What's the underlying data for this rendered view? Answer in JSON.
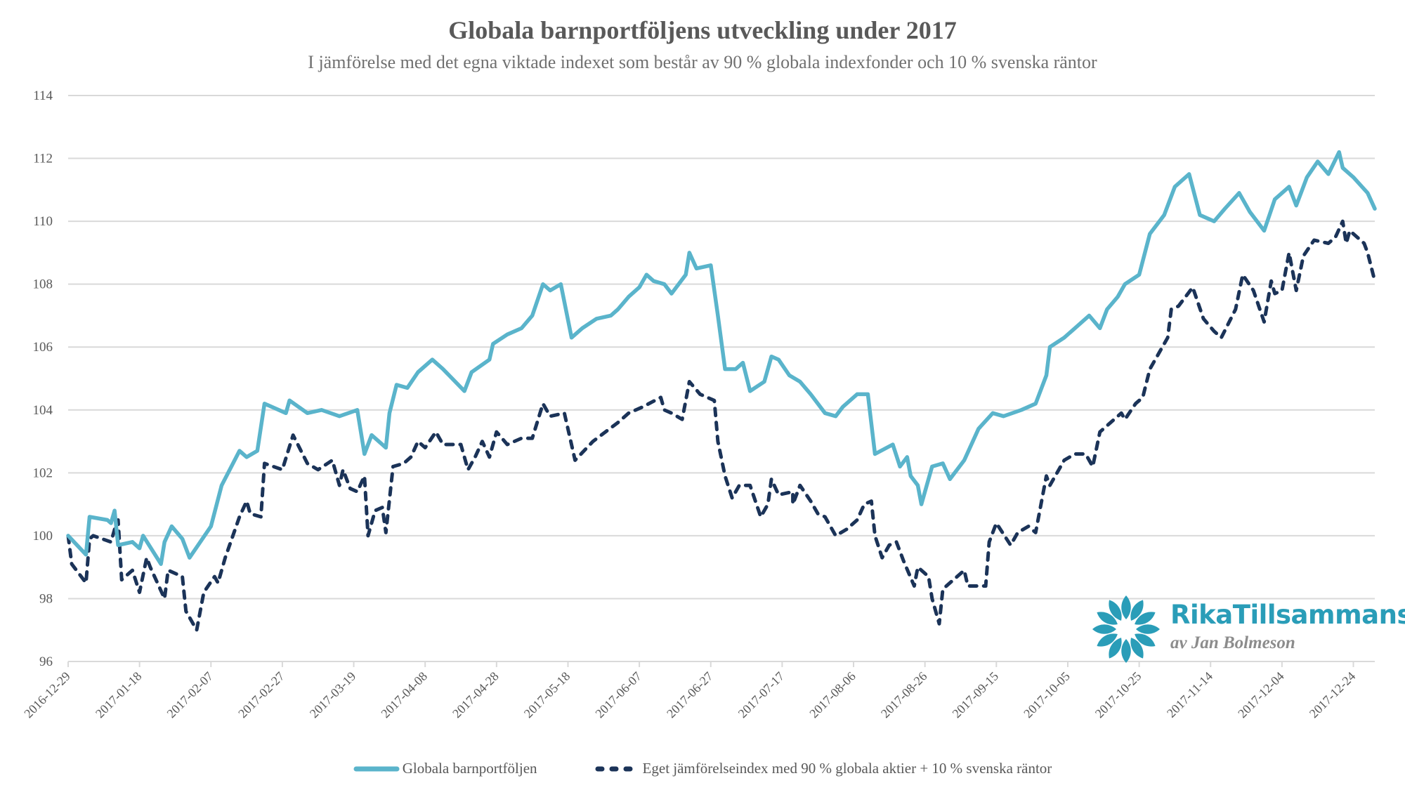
{
  "chart_data": {
    "type": "line",
    "title": "Globala barnportföljens utveckling under 2017",
    "subtitle": "I jämförelse med det egna viktade indexet som består av 90 % globala indexfonder och 10 % svenska räntor",
    "xlabel": "",
    "ylabel": "",
    "x_unit": "days since 2016-12-29",
    "xlim": [
      0,
      366
    ],
    "ylim": [
      96,
      114
    ],
    "yticks": [
      96,
      98,
      100,
      102,
      104,
      106,
      108,
      110,
      112,
      114
    ],
    "xticks": [
      {
        "day": 0,
        "label": "2016-12-29"
      },
      {
        "day": 20,
        "label": "2017-01-18"
      },
      {
        "day": 40,
        "label": "2017-02-07"
      },
      {
        "day": 60,
        "label": "2017-02-27"
      },
      {
        "day": 80,
        "label": "2017-03-19"
      },
      {
        "day": 100,
        "label": "2017-04-08"
      },
      {
        "day": 120,
        "label": "2017-04-28"
      },
      {
        "day": 140,
        "label": "2017-05-18"
      },
      {
        "day": 160,
        "label": "2017-06-07"
      },
      {
        "day": 180,
        "label": "2017-06-27"
      },
      {
        "day": 200,
        "label": "2017-07-17"
      },
      {
        "day": 220,
        "label": "2017-08-06"
      },
      {
        "day": 240,
        "label": "2017-08-26"
      },
      {
        "day": 260,
        "label": "2017-09-15"
      },
      {
        "day": 280,
        "label": "2017-10-05"
      },
      {
        "day": 300,
        "label": "2017-10-25"
      },
      {
        "day": 320,
        "label": "2017-11-14"
      },
      {
        "day": 340,
        "label": "2017-12-04"
      },
      {
        "day": 360,
        "label": "2017-12-24"
      }
    ],
    "grid": true,
    "legend_position": "bottom",
    "series": [
      {
        "name": "Globala barnportföljen",
        "color": "#5ab4cb",
        "style": "solid",
        "points": [
          [
            0,
            100.0
          ],
          [
            5,
            99.4
          ],
          [
            6,
            100.6
          ],
          [
            11,
            100.5
          ],
          [
            12,
            100.4
          ],
          [
            13,
            100.8
          ],
          [
            14,
            99.7
          ],
          [
            18,
            99.8
          ],
          [
            20,
            99.6
          ],
          [
            21,
            100.0
          ],
          [
            26,
            99.1
          ],
          [
            27,
            99.8
          ],
          [
            29,
            100.3
          ],
          [
            32,
            99.9
          ],
          [
            34,
            99.3
          ],
          [
            40,
            100.3
          ],
          [
            43,
            101.6
          ],
          [
            48,
            102.7
          ],
          [
            50,
            102.5
          ],
          [
            53,
            102.7
          ],
          [
            55,
            104.2
          ],
          [
            61,
            103.9
          ],
          [
            62,
            104.3
          ],
          [
            67,
            103.9
          ],
          [
            71,
            104.0
          ],
          [
            76,
            103.8
          ],
          [
            81,
            104.0
          ],
          [
            83,
            102.6
          ],
          [
            85,
            103.2
          ],
          [
            89,
            102.8
          ],
          [
            90,
            103.9
          ],
          [
            92,
            104.8
          ],
          [
            95,
            104.7
          ],
          [
            98,
            105.2
          ],
          [
            102,
            105.6
          ],
          [
            105,
            105.3
          ],
          [
            111,
            104.6
          ],
          [
            113,
            105.2
          ],
          [
            118,
            105.6
          ],
          [
            119,
            106.1
          ],
          [
            123,
            106.4
          ],
          [
            127,
            106.6
          ],
          [
            130,
            107.0
          ],
          [
            133,
            108.0
          ],
          [
            135,
            107.8
          ],
          [
            138,
            108.0
          ],
          [
            141,
            106.3
          ],
          [
            144,
            106.6
          ],
          [
            148,
            106.9
          ],
          [
            152,
            107.0
          ],
          [
            154,
            107.2
          ],
          [
            157,
            107.6
          ],
          [
            160,
            107.9
          ],
          [
            162,
            108.3
          ],
          [
            164,
            108.1
          ],
          [
            167,
            108.0
          ],
          [
            169,
            107.7
          ],
          [
            173,
            108.3
          ],
          [
            174,
            109.0
          ],
          [
            176,
            108.5
          ],
          [
            180,
            108.6
          ],
          [
            182,
            107.0
          ],
          [
            184,
            105.3
          ],
          [
            187,
            105.3
          ],
          [
            189,
            105.5
          ],
          [
            191,
            104.6
          ],
          [
            195,
            104.9
          ],
          [
            197,
            105.7
          ],
          [
            199,
            105.6
          ],
          [
            202,
            105.1
          ],
          [
            205,
            104.9
          ],
          [
            208,
            104.5
          ],
          [
            212,
            103.9
          ],
          [
            215,
            103.8
          ],
          [
            217,
            104.1
          ],
          [
            221,
            104.5
          ],
          [
            224,
            104.5
          ],
          [
            226,
            102.6
          ],
          [
            231,
            102.9
          ],
          [
            233,
            102.2
          ],
          [
            235,
            102.5
          ],
          [
            236,
            101.9
          ],
          [
            238,
            101.6
          ],
          [
            239,
            101.0
          ],
          [
            242,
            102.2
          ],
          [
            245,
            102.3
          ],
          [
            247,
            101.8
          ],
          [
            251,
            102.4
          ],
          [
            255,
            103.4
          ],
          [
            259,
            103.9
          ],
          [
            262,
            103.8
          ],
          [
            267,
            104.0
          ],
          [
            271,
            104.2
          ],
          [
            274,
            105.1
          ],
          [
            275,
            106.0
          ],
          [
            279,
            106.3
          ],
          [
            282,
            106.6
          ],
          [
            286,
            107.0
          ],
          [
            289,
            106.6
          ],
          [
            291,
            107.2
          ],
          [
            294,
            107.6
          ],
          [
            296,
            108.0
          ],
          [
            300,
            108.3
          ],
          [
            303,
            109.6
          ],
          [
            307,
            110.2
          ],
          [
            310,
            111.1
          ],
          [
            314,
            111.5
          ],
          [
            317,
            110.2
          ],
          [
            321,
            110.0
          ],
          [
            324,
            110.4
          ],
          [
            328,
            110.9
          ],
          [
            331,
            110.3
          ],
          [
            335,
            109.7
          ],
          [
            338,
            110.7
          ],
          [
            342,
            111.1
          ],
          [
            344,
            110.5
          ],
          [
            347,
            111.4
          ],
          [
            350,
            111.9
          ],
          [
            353,
            111.5
          ],
          [
            356,
            112.2
          ],
          [
            357,
            111.7
          ],
          [
            360,
            111.4
          ],
          [
            364,
            110.9
          ],
          [
            366,
            110.4
          ]
        ]
      },
      {
        "name": "Eget jämförelseindex med 90 % globala aktier + 10 % svenska räntor",
        "color": "#1b3358",
        "style": "dashed",
        "points": [
          [
            0,
            100.0
          ],
          [
            1,
            99.1
          ],
          [
            5,
            98.5
          ],
          [
            6,
            99.9
          ],
          [
            7,
            100.0
          ],
          [
            12,
            99.8
          ],
          [
            13,
            100.2
          ],
          [
            14,
            100.5
          ],
          [
            15,
            98.6
          ],
          [
            18,
            98.9
          ],
          [
            20,
            98.2
          ],
          [
            22,
            99.3
          ],
          [
            23,
            99.0
          ],
          [
            27,
            98.0
          ],
          [
            28,
            98.9
          ],
          [
            32,
            98.7
          ],
          [
            33,
            97.6
          ],
          [
            36,
            97.0
          ],
          [
            38,
            98.2
          ],
          [
            41,
            98.7
          ],
          [
            42,
            98.5
          ],
          [
            44,
            99.3
          ],
          [
            48,
            100.6
          ],
          [
            50,
            101.1
          ],
          [
            51,
            100.7
          ],
          [
            54,
            100.6
          ],
          [
            55,
            102.3
          ],
          [
            60,
            102.1
          ],
          [
            63,
            103.2
          ],
          [
            67,
            102.3
          ],
          [
            70,
            102.1
          ],
          [
            74,
            102.4
          ],
          [
            76,
            101.6
          ],
          [
            77,
            102.1
          ],
          [
            79,
            101.5
          ],
          [
            81,
            101.4
          ],
          [
            83,
            101.9
          ],
          [
            84,
            100.0
          ],
          [
            86,
            100.8
          ],
          [
            88,
            100.9
          ],
          [
            89,
            100.1
          ],
          [
            91,
            102.2
          ],
          [
            94,
            102.3
          ],
          [
            96,
            102.5
          ],
          [
            98,
            103.0
          ],
          [
            100,
            102.8
          ],
          [
            103,
            103.3
          ],
          [
            105,
            102.9
          ],
          [
            110,
            102.9
          ],
          [
            112,
            102.1
          ],
          [
            114,
            102.5
          ],
          [
            116,
            103.0
          ],
          [
            118,
            102.5
          ],
          [
            120,
            103.3
          ],
          [
            123,
            102.9
          ],
          [
            127,
            103.1
          ],
          [
            130,
            103.1
          ],
          [
            133,
            104.2
          ],
          [
            135,
            103.8
          ],
          [
            139,
            103.9
          ],
          [
            142,
            102.4
          ],
          [
            147,
            103.0
          ],
          [
            154,
            103.6
          ],
          [
            157,
            103.9
          ],
          [
            161,
            104.1
          ],
          [
            166,
            104.4
          ],
          [
            167,
            104.0
          ],
          [
            169,
            103.9
          ],
          [
            172,
            103.7
          ],
          [
            174,
            104.9
          ],
          [
            177,
            104.5
          ],
          [
            181,
            104.3
          ],
          [
            182,
            103.0
          ],
          [
            184,
            101.9
          ],
          [
            186,
            101.2
          ],
          [
            188,
            101.6
          ],
          [
            191,
            101.6
          ],
          [
            194,
            100.6
          ],
          [
            196,
            101.0
          ],
          [
            197,
            101.8
          ],
          [
            199,
            101.3
          ],
          [
            203,
            101.4
          ],
          [
            203,
            101.0
          ],
          [
            205,
            101.6
          ],
          [
            208,
            101.1
          ],
          [
            210,
            100.7
          ],
          [
            212,
            100.6
          ],
          [
            215,
            100.0
          ],
          [
            218,
            100.2
          ],
          [
            221,
            100.5
          ],
          [
            223,
            101.0
          ],
          [
            225,
            101.1
          ],
          [
            226,
            100.0
          ],
          [
            228,
            99.3
          ],
          [
            230,
            99.7
          ],
          [
            232,
            99.8
          ],
          [
            234,
            99.2
          ],
          [
            237,
            98.4
          ],
          [
            238,
            99.0
          ],
          [
            241,
            98.7
          ],
          [
            242,
            98.0
          ],
          [
            244,
            97.2
          ],
          [
            245,
            98.3
          ],
          [
            249,
            98.7
          ],
          [
            251,
            98.9
          ],
          [
            252,
            98.4
          ],
          [
            257,
            98.4
          ],
          [
            258,
            99.8
          ],
          [
            260,
            100.4
          ],
          [
            264,
            99.7
          ],
          [
            266,
            100.1
          ],
          [
            269,
            100.3
          ],
          [
            271,
            100.1
          ],
          [
            274,
            101.9
          ],
          [
            275,
            101.6
          ],
          [
            279,
            102.4
          ],
          [
            282,
            102.6
          ],
          [
            285,
            102.6
          ],
          [
            287,
            102.2
          ],
          [
            289,
            103.3
          ],
          [
            293,
            103.7
          ],
          [
            295,
            103.9
          ],
          [
            296,
            103.7
          ],
          [
            299,
            104.2
          ],
          [
            301,
            104.4
          ],
          [
            303,
            105.3
          ],
          [
            308,
            106.3
          ],
          [
            309,
            107.2
          ],
          [
            311,
            107.3
          ],
          [
            315,
            107.9
          ],
          [
            318,
            106.9
          ],
          [
            321,
            106.5
          ],
          [
            323,
            106.3
          ],
          [
            327,
            107.2
          ],
          [
            329,
            108.3
          ],
          [
            332,
            107.8
          ],
          [
            335,
            106.8
          ],
          [
            337,
            108.1
          ],
          [
            338,
            107.7
          ],
          [
            340,
            107.8
          ],
          [
            342,
            109.0
          ],
          [
            344,
            107.8
          ],
          [
            346,
            108.9
          ],
          [
            349,
            109.4
          ],
          [
            353,
            109.3
          ],
          [
            355,
            109.5
          ],
          [
            357,
            110.0
          ],
          [
            358,
            109.3
          ],
          [
            359,
            109.7
          ],
          [
            363,
            109.3
          ],
          [
            364,
            109.0
          ],
          [
            366,
            108.1
          ]
        ]
      }
    ]
  },
  "legend": {
    "items": [
      {
        "label": "Globala barnportföljen"
      },
      {
        "label": "Eget jämförelseindex med 90 % globala aktier + 10 % svenska räntor"
      }
    ]
  },
  "logo": {
    "name": "RikaTillsammans",
    "byline": "av Jan Bolmeson",
    "color": "#2a9db8"
  }
}
